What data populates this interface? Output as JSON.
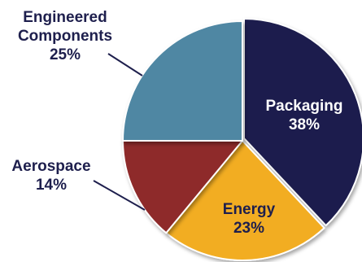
{
  "chart_data": {
    "type": "pie",
    "title": "",
    "slices": [
      {
        "label_lines": [
          "Packaging"
        ],
        "value": 38,
        "value_label": "38%",
        "color": "#1e1f4d",
        "text_color": "#ffffff"
      },
      {
        "label_lines": [
          "Energy"
        ],
        "value": 23,
        "value_label": "23%",
        "color": "#f2ad24",
        "text_color": "#1e1f4d"
      },
      {
        "label_lines": [
          "Aerospace"
        ],
        "value": 14,
        "value_label": "14%",
        "color": "#8e2a2a",
        "text_color": "#1e1f4d"
      },
      {
        "label_lines": [
          "Engineered",
          "Components"
        ],
        "value": 25,
        "value_label": "25%",
        "color": "#4f87a3",
        "text_color": "#1e1f4d"
      }
    ],
    "legend": "none",
    "labels": "slice name and percentage on or beside each slice"
  }
}
